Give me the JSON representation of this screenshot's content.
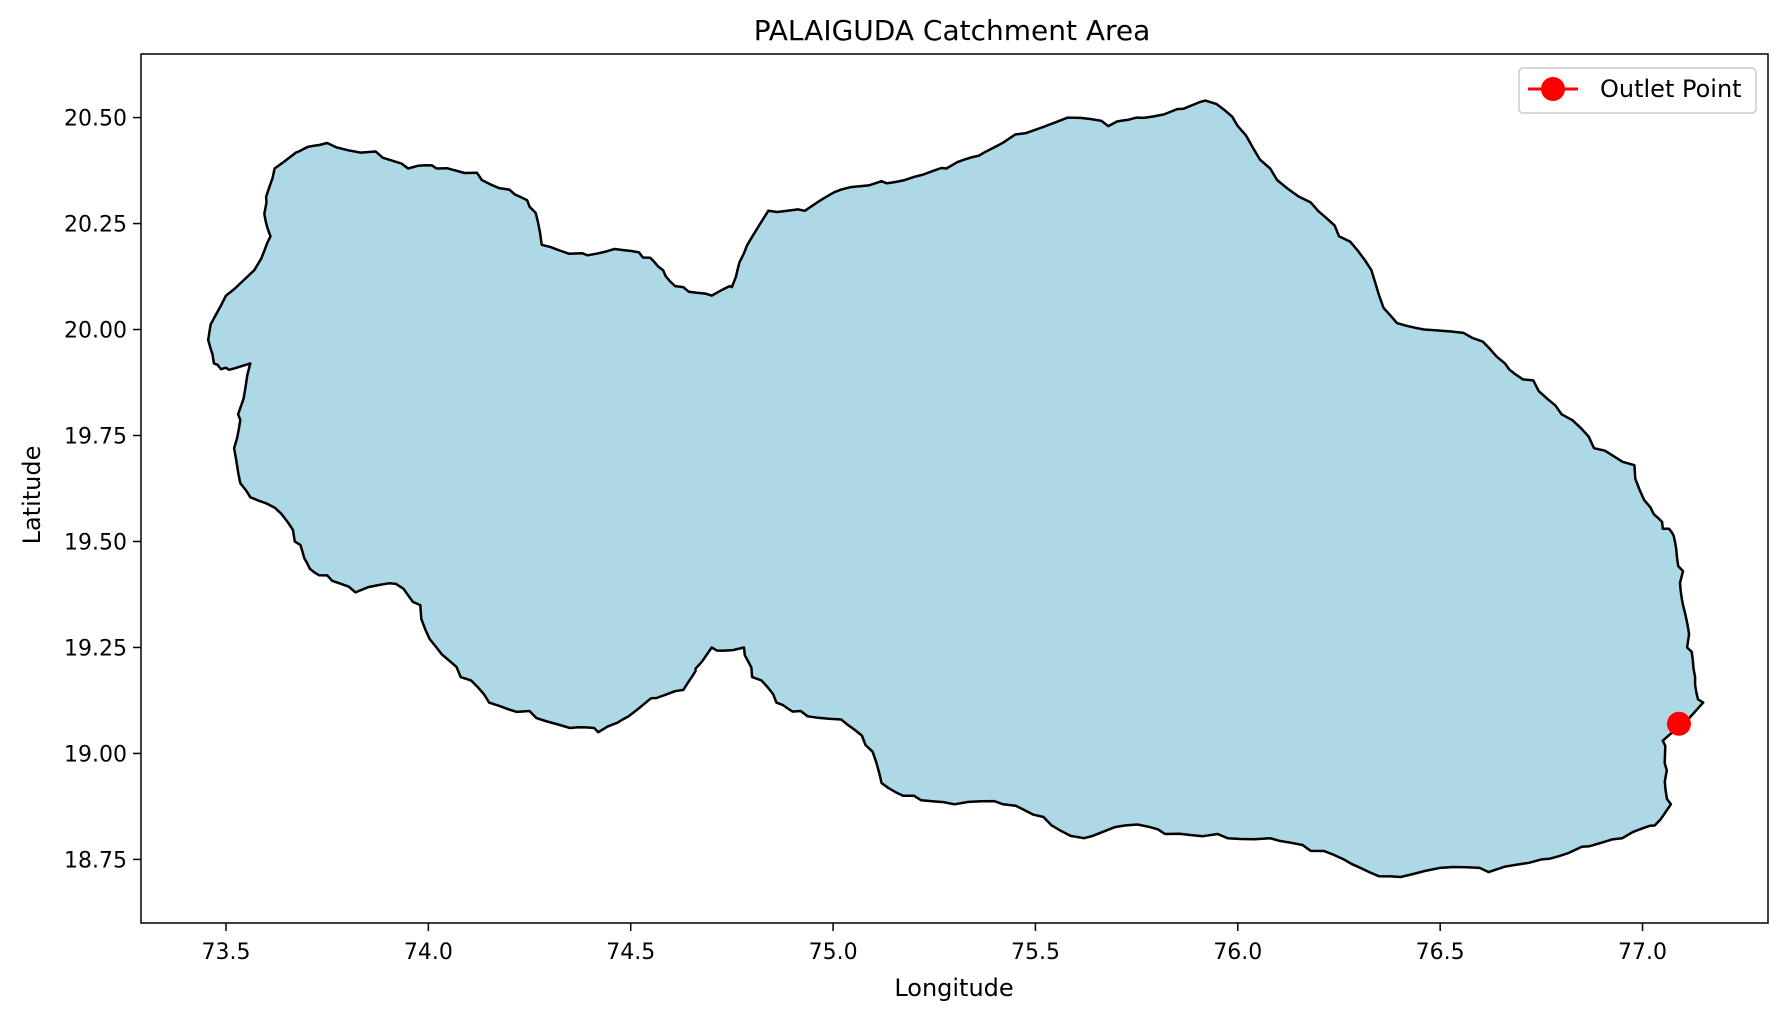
{
  "chart_data": {
    "type": "map",
    "title": "PALAIGUDA Catchment Area",
    "xlabel": "Longitude",
    "ylabel": "Latitude",
    "xlim": [
      73.29,
      77.31
    ],
    "ylim": [
      18.6,
      20.65
    ],
    "xticks": [
      73.5,
      74.0,
      74.5,
      75.0,
      75.5,
      76.0,
      76.5,
      77.0
    ],
    "xtick_labels": [
      "73.5",
      "74.0",
      "74.5",
      "75.0",
      "75.5",
      "76.0",
      "76.5",
      "77.0"
    ],
    "yticks": [
      18.75,
      19.0,
      19.25,
      19.5,
      19.75,
      20.0,
      20.25,
      20.5
    ],
    "ytick_labels": [
      "18.75",
      "19.00",
      "19.25",
      "19.50",
      "19.75",
      "20.00",
      "20.25",
      "20.50"
    ],
    "legend": {
      "position": "top-right",
      "entries": [
        "Outlet Point"
      ]
    },
    "catchment": {
      "fill": "#add8e6",
      "edge": "#000000",
      "boundary": [
        [
          73.47,
          19.92
        ],
        [
          73.46,
          20.0
        ],
        [
          73.5,
          20.08
        ],
        [
          73.57,
          20.14
        ],
        [
          73.61,
          20.22
        ],
        [
          73.6,
          20.3
        ],
        [
          73.62,
          20.38
        ],
        [
          73.68,
          20.42
        ],
        [
          73.75,
          20.44
        ],
        [
          73.87,
          20.42
        ],
        [
          73.95,
          20.38
        ],
        [
          74.02,
          20.38
        ],
        [
          74.12,
          20.37
        ],
        [
          74.2,
          20.33
        ],
        [
          74.25,
          20.29
        ],
        [
          74.28,
          20.2
        ],
        [
          74.38,
          20.18
        ],
        [
          74.46,
          20.19
        ],
        [
          74.53,
          20.17
        ],
        [
          74.58,
          20.14
        ],
        [
          74.63,
          20.1
        ],
        [
          74.7,
          20.08
        ],
        [
          74.75,
          20.1
        ],
        [
          74.78,
          20.18
        ],
        [
          74.84,
          20.28
        ],
        [
          74.93,
          20.28
        ],
        [
          75.02,
          20.33
        ],
        [
          75.12,
          20.35
        ],
        [
          75.2,
          20.36
        ],
        [
          75.28,
          20.38
        ],
        [
          75.36,
          20.41
        ],
        [
          75.45,
          20.46
        ],
        [
          75.58,
          20.5
        ],
        [
          75.68,
          20.48
        ],
        [
          75.75,
          20.5
        ],
        [
          75.85,
          20.52
        ],
        [
          75.92,
          20.54
        ],
        [
          76.0,
          20.48
        ],
        [
          76.08,
          20.38
        ],
        [
          76.18,
          20.3
        ],
        [
          76.25,
          20.22
        ],
        [
          76.33,
          20.14
        ],
        [
          76.38,
          20.03
        ],
        [
          76.46,
          20.0
        ],
        [
          76.58,
          19.98
        ],
        [
          76.66,
          19.92
        ],
        [
          76.73,
          19.88
        ],
        [
          76.8,
          19.8
        ],
        [
          76.88,
          19.72
        ],
        [
          76.98,
          19.68
        ],
        [
          77.02,
          19.58
        ],
        [
          77.05,
          19.53
        ],
        [
          77.08,
          19.5
        ],
        [
          77.1,
          19.43
        ],
        [
          77.1,
          19.35
        ],
        [
          77.11,
          19.25
        ],
        [
          77.13,
          19.18
        ],
        [
          77.15,
          19.12
        ],
        [
          77.09,
          19.06
        ],
        [
          77.05,
          19.03
        ],
        [
          77.06,
          18.96
        ],
        [
          77.07,
          18.88
        ],
        [
          77.03,
          18.83
        ],
        [
          76.95,
          18.8
        ],
        [
          76.85,
          18.78
        ],
        [
          76.75,
          18.75
        ],
        [
          76.62,
          18.72
        ],
        [
          76.5,
          18.73
        ],
        [
          76.38,
          18.71
        ],
        [
          76.28,
          18.74
        ],
        [
          76.18,
          18.77
        ],
        [
          76.08,
          18.8
        ],
        [
          75.95,
          18.81
        ],
        [
          75.82,
          18.81
        ],
        [
          75.72,
          18.83
        ],
        [
          75.62,
          18.8
        ],
        [
          75.52,
          18.85
        ],
        [
          75.42,
          18.88
        ],
        [
          75.3,
          18.88
        ],
        [
          75.2,
          18.9
        ],
        [
          75.12,
          18.93
        ],
        [
          75.08,
          19.02
        ],
        [
          75.02,
          19.08
        ],
        [
          74.92,
          19.1
        ],
        [
          74.86,
          19.12
        ],
        [
          74.8,
          19.18
        ],
        [
          74.78,
          19.25
        ],
        [
          74.7,
          19.25
        ],
        [
          74.66,
          19.2
        ],
        [
          74.63,
          19.15
        ],
        [
          74.55,
          19.13
        ],
        [
          74.48,
          19.08
        ],
        [
          74.42,
          19.05
        ],
        [
          74.35,
          19.06
        ],
        [
          74.25,
          19.1
        ],
        [
          74.15,
          19.12
        ],
        [
          74.08,
          19.18
        ],
        [
          74.02,
          19.25
        ],
        [
          73.98,
          19.35
        ],
        [
          73.92,
          19.4
        ],
        [
          73.82,
          19.38
        ],
        [
          73.75,
          19.42
        ],
        [
          73.7,
          19.45
        ],
        [
          73.67,
          19.5
        ],
        [
          73.62,
          19.58
        ],
        [
          73.55,
          19.62
        ],
        [
          73.52,
          19.72
        ],
        [
          73.53,
          19.8
        ],
        [
          73.56,
          19.92
        ],
        [
          73.5,
          19.91
        ]
      ]
    },
    "outlet_point": {
      "label": "Outlet Point",
      "lon": 77.09,
      "lat": 19.07,
      "color": "#ff0000"
    }
  }
}
